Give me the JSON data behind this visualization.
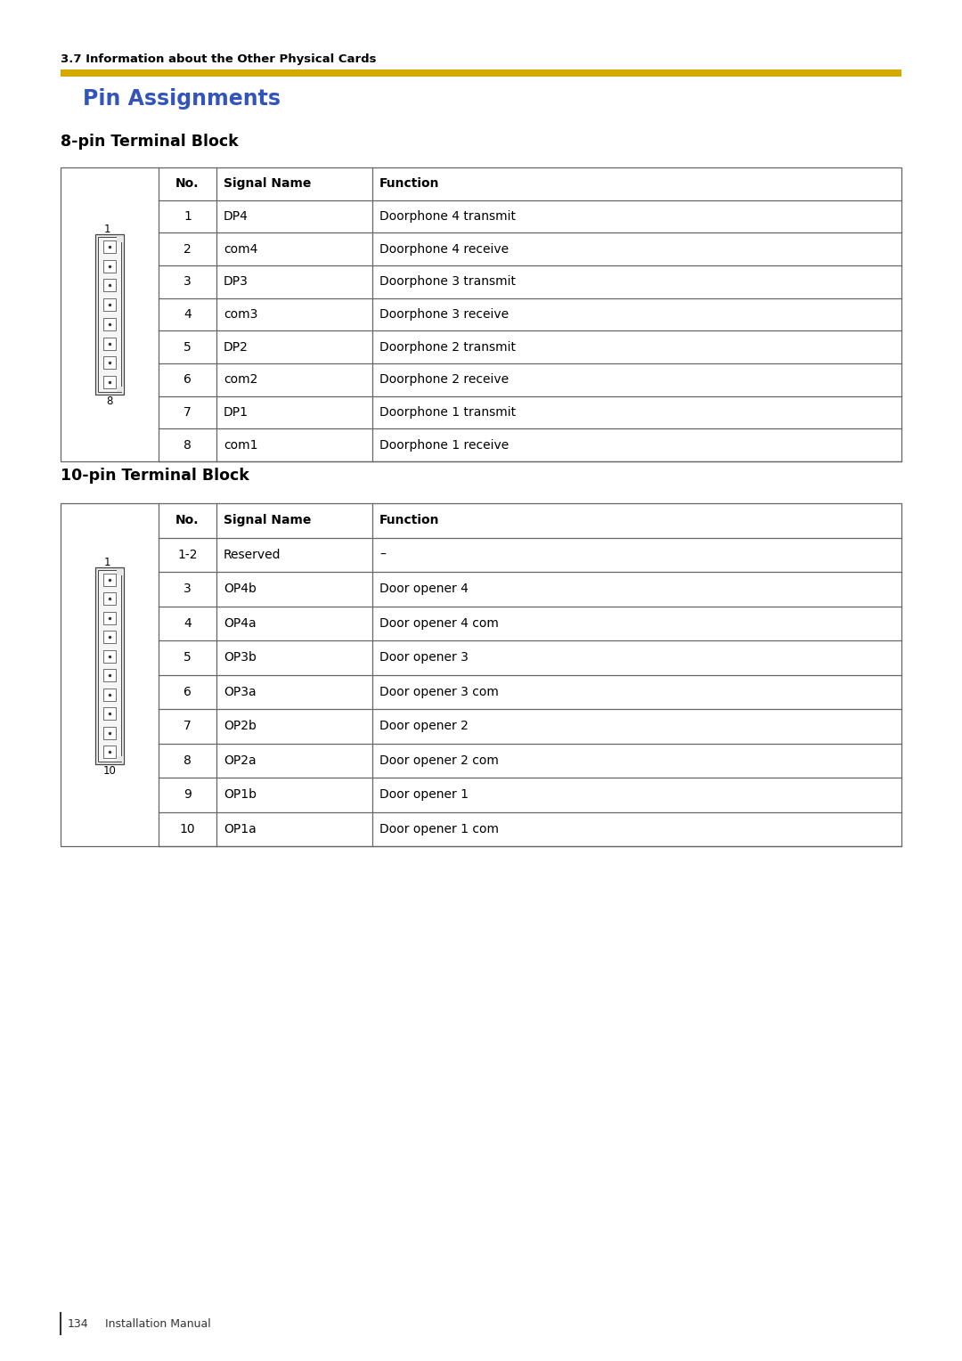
{
  "page_bg": "#ffffff",
  "header_text": "3.7 Information about the Other Physical Cards",
  "header_fontsize": 9.5,
  "rule_color": "#D4AA00",
  "title": "Pin Assignments",
  "title_color": "#3355BB",
  "title_fontsize": 17,
  "section1_title": "8-pin Terminal Block",
  "section2_title": "10-pin Terminal Block",
  "section_fontsize": 12.5,
  "table1_headers": [
    "No.",
    "Signal Name",
    "Function"
  ],
  "table1_rows": [
    [
      "1",
      "DP4",
      "Doorphone 4 transmit"
    ],
    [
      "2",
      "com4",
      "Doorphone 4 receive"
    ],
    [
      "3",
      "DP3",
      "Doorphone 3 transmit"
    ],
    [
      "4",
      "com3",
      "Doorphone 3 receive"
    ],
    [
      "5",
      "DP2",
      "Doorphone 2 transmit"
    ],
    [
      "6",
      "com2",
      "Doorphone 2 receive"
    ],
    [
      "7",
      "DP1",
      "Doorphone 1 transmit"
    ],
    [
      "8",
      "com1",
      "Doorphone 1 receive"
    ]
  ],
  "table2_headers": [
    "No.",
    "Signal Name",
    "Function"
  ],
  "table2_rows": [
    [
      "1-2",
      "Reserved",
      "–"
    ],
    [
      "3",
      "OP4b",
      "Door opener 4"
    ],
    [
      "4",
      "OP4a",
      "Door opener 4 com"
    ],
    [
      "5",
      "OP3b",
      "Door opener 3"
    ],
    [
      "6",
      "OP3a",
      "Door opener 3 com"
    ],
    [
      "7",
      "OP2b",
      "Door opener 2"
    ],
    [
      "8",
      "OP2a",
      "Door opener 2 com"
    ],
    [
      "9",
      "OP1b",
      "Door opener 1"
    ],
    [
      "10",
      "OP1a",
      "Door opener 1 com"
    ]
  ],
  "footer_page": "134",
  "footer_label": "Installation Manual",
  "footer_fontsize": 9,
  "table_border_color": "#666666",
  "cell_fontsize": 10,
  "header_cell_fontsize": 10
}
